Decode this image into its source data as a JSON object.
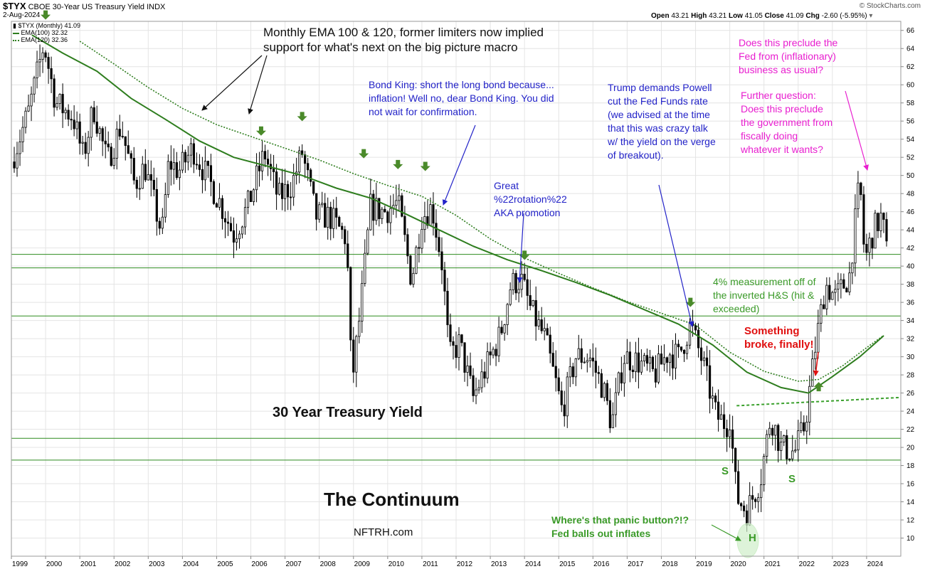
{
  "header": {
    "symbol": "$TYX",
    "description": "CBOE 30-Year US Treasury Yield INDX",
    "date": "2-Aug-2024",
    "open_label": "Open",
    "open": "43.21",
    "high_label": "High",
    "high": "43.21",
    "low_label": "Low",
    "low": "41.05",
    "close_label": "Close",
    "close": "41.09",
    "chg_label": "Chg",
    "chg": "-2.60 (-5.95%)",
    "watermark": "© StockCharts.com"
  },
  "legend": {
    "price": "$TYX (Monthly) 41.09",
    "ema100": "EMA(100) 32.32",
    "ema120": "EMA(120) 32.36"
  },
  "annotations": {
    "ema_note": "Monthly EMA 100 & 120, former limiters now implied\nsupport for what's next on the big picture macro",
    "bond_king": "Bond King: short the long bond because...\ninflation! Well no, dear Bond King. You did\nnot wait for confirmation.",
    "great_rotation": "Great\n%22rotation%22\nAKA promotion",
    "trump": "Trump demands Powell\ncut the Fed Funds rate\n(we advised at the time\nthat this was crazy talk\nw/ the yield on the verge\nof breakout).",
    "preclude_fed": "Does this preclude the\nFed from (inflationary)\nbusiness as usual?",
    "further_q": "Further question:\nDoes this preclude\nthe government from\nfiscally doing\nwhatever it wants?",
    "measurement": "4% measurement off of\nthe inverted H&S (hit &\nexceeded)",
    "something_broke": "Something\nbroke, finally!",
    "panic": "Where's that panic button?!?\nFed balls out inflates",
    "title_30yr": "30 Year Treasury Yield",
    "continuum": "The Continuum",
    "nftrh": "NFTRH.com",
    "s_left": "S",
    "s_right": "S",
    "h_label": "H"
  },
  "colors": {
    "ema_line": "#2e7d1e",
    "ema120_dotted": "#2e7d1e",
    "candle": "#000000",
    "support_line": "#2e8b1f",
    "neckline": "#3aa02c",
    "blue_text": "#2323c8",
    "magenta_text": "#e81ecf",
    "green_text": "#3a9a28",
    "red_text": "#e01010",
    "arrow_green": "#4a8a2a"
  },
  "chart_data": {
    "type": "candlestick",
    "title": "30 Year Treasury Yield",
    "ylim": [
      8,
      67
    ],
    "y_ticks": [
      10,
      12,
      14,
      16,
      18,
      20,
      22,
      24,
      26,
      28,
      30,
      32,
      34,
      36,
      38,
      40,
      42,
      44,
      46,
      48,
      50,
      52,
      54,
      56,
      58,
      60,
      62,
      64,
      66
    ],
    "x_ticks": [
      "1999",
      "2000",
      "2001",
      "2002",
      "2003",
      "2004",
      "2005",
      "2006",
      "2007",
      "2008",
      "2009",
      "2010",
      "2011",
      "2012",
      "2013",
      "2014",
      "2015",
      "2016",
      "2017",
      "2018",
      "2019",
      "2020",
      "2021",
      "2022",
      "2023",
      "2024"
    ],
    "horizontal_levels": [
      41.3,
      39.8,
      34.5,
      21.0,
      18.6
    ],
    "neckline": {
      "from": [
        2020.2,
        24.6
      ],
      "to": [
        2024.95,
        25.5
      ]
    },
    "monthly_close_path": [
      [
        1999.0,
        51.5
      ],
      [
        1999.5,
        57.0
      ],
      [
        1999.95,
        64.5
      ],
      [
        2000.3,
        58.0
      ],
      [
        2000.8,
        56.5
      ],
      [
        2001.1,
        52.0
      ],
      [
        2001.4,
        57.5
      ],
      [
        2001.8,
        51.5
      ],
      [
        2002.2,
        55.5
      ],
      [
        2002.6,
        49.0
      ],
      [
        2002.9,
        51.0
      ],
      [
        2003.4,
        43.5
      ],
      [
        2003.6,
        51.5
      ],
      [
        2003.9,
        50.5
      ],
      [
        2004.3,
        53.0
      ],
      [
        2004.7,
        50.0
      ],
      [
        2005.1,
        47.0
      ],
      [
        2005.5,
        43.5
      ],
      [
        2005.9,
        46.5
      ],
      [
        2006.4,
        52.5
      ],
      [
        2006.8,
        47.5
      ],
      [
        2007.2,
        49.0
      ],
      [
        2007.5,
        52.5
      ],
      [
        2007.9,
        45.5
      ],
      [
        2008.3,
        45.5
      ],
      [
        2008.8,
        43.0
      ],
      [
        2008.95,
        27.0
      ],
      [
        2009.2,
        35.0
      ],
      [
        2009.5,
        46.5
      ],
      [
        2009.9,
        46.0
      ],
      [
        2010.3,
        47.0
      ],
      [
        2010.7,
        38.5
      ],
      [
        2011.0,
        45.5
      ],
      [
        2011.3,
        46.5
      ],
      [
        2011.6,
        40.0
      ],
      [
        2011.8,
        30.0
      ],
      [
        2012.1,
        31.5
      ],
      [
        2012.5,
        25.5
      ],
      [
        2012.9,
        29.0
      ],
      [
        2013.3,
        32.5
      ],
      [
        2013.6,
        38.0
      ],
      [
        2013.9,
        38.5
      ],
      [
        2014.2,
        35.0
      ],
      [
        2014.6,
        32.0
      ],
      [
        2014.95,
        26.5
      ],
      [
        2015.1,
        24.0
      ],
      [
        2015.5,
        30.0
      ],
      [
        2015.9,
        30.0
      ],
      [
        2016.3,
        26.5
      ],
      [
        2016.55,
        22.5
      ],
      [
        2016.9,
        30.0
      ],
      [
        2017.3,
        29.5
      ],
      [
        2017.8,
        28.0
      ],
      [
        2018.2,
        30.5
      ],
      [
        2018.5,
        30.0
      ],
      [
        2018.85,
        33.5
      ],
      [
        2019.2,
        29.5
      ],
      [
        2019.6,
        23.5
      ],
      [
        2019.9,
        22.5
      ],
      [
        2020.0,
        23.5
      ],
      [
        2020.2,
        14.5
      ],
      [
        2020.5,
        13.0
      ],
      [
        2020.9,
        16.5
      ],
      [
        2021.2,
        23.5
      ],
      [
        2021.5,
        20.0
      ],
      [
        2021.9,
        19.5
      ],
      [
        2022.2,
        22.5
      ],
      [
        2022.5,
        31.0
      ],
      [
        2022.8,
        38.0
      ],
      [
        2023.1,
        36.5
      ],
      [
        2023.5,
        39.0
      ],
      [
        2023.8,
        49.5
      ],
      [
        2023.95,
        40.5
      ],
      [
        2024.2,
        44.0
      ],
      [
        2024.45,
        45.5
      ],
      [
        2024.6,
        41.09
      ]
    ],
    "ema100_path": [
      [
        1999.6,
        65.5
      ],
      [
        2000.5,
        63.5
      ],
      [
        2001.5,
        61.5
      ],
      [
        2002.5,
        58.5
      ],
      [
        2003.5,
        56.2
      ],
      [
        2004.5,
        53.8
      ],
      [
        2005.5,
        52.0
      ],
      [
        2006.5,
        51.0
      ],
      [
        2007.5,
        50.0
      ],
      [
        2008.5,
        48.6
      ],
      [
        2009.5,
        47.5
      ],
      [
        2010.5,
        45.8
      ],
      [
        2011.5,
        44.0
      ],
      [
        2012.5,
        42.2
      ],
      [
        2013.5,
        40.7
      ],
      [
        2014.5,
        39.5
      ],
      [
        2015.5,
        38.2
      ],
      [
        2016.5,
        36.8
      ],
      [
        2017.5,
        35.2
      ],
      [
        2018.5,
        33.6
      ],
      [
        2019.5,
        31.3
      ],
      [
        2020.5,
        28.3
      ],
      [
        2021.5,
        26.6
      ],
      [
        2022.3,
        26.0
      ],
      [
        2023.0,
        27.8
      ],
      [
        2023.8,
        30.0
      ],
      [
        2024.5,
        32.32
      ]
    ],
    "ema120_path": [
      [
        2001.0,
        64.8
      ],
      [
        2002.0,
        62.3
      ],
      [
        2003.0,
        59.7
      ],
      [
        2004.0,
        57.4
      ],
      [
        2005.0,
        55.6
      ],
      [
        2006.0,
        54.3
      ],
      [
        2007.0,
        53.0
      ],
      [
        2008.0,
        51.7
      ],
      [
        2009.0,
        50.2
      ],
      [
        2010.0,
        48.9
      ],
      [
        2011.0,
        47.7
      ],
      [
        2012.0,
        45.6
      ],
      [
        2013.0,
        43.0
      ],
      [
        2014.0,
        40.9
      ],
      [
        2015.0,
        39.2
      ],
      [
        2016.0,
        37.6
      ],
      [
        2017.0,
        36.1
      ],
      [
        2018.0,
        34.8
      ],
      [
        2019.0,
        33.5
      ],
      [
        2020.0,
        30.5
      ],
      [
        2021.0,
        28.4
      ],
      [
        2022.0,
        27.3
      ],
      [
        2022.6,
        27.5
      ],
      [
        2023.3,
        29.0
      ],
      [
        2024.0,
        31.0
      ],
      [
        2024.5,
        32.36
      ]
    ],
    "green_down_arrows": [
      [
        2000.0,
        67.5
      ],
      [
        2006.3,
        54.7
      ],
      [
        2007.5,
        56.3
      ],
      [
        2009.3,
        52.2
      ],
      [
        2010.3,
        51.0
      ],
      [
        2011.1,
        50.8
      ],
      [
        2014.0,
        41.0
      ],
      [
        2018.85,
        35.8
      ]
    ],
    "green_up_arrow": [
      2022.6,
      26.9
    ],
    "series": [
      {
        "name": "$TYX (Monthly) 41.09"
      },
      {
        "name": "EMA(100) 32.32"
      },
      {
        "name": "EMA(120) 32.36"
      }
    ]
  }
}
